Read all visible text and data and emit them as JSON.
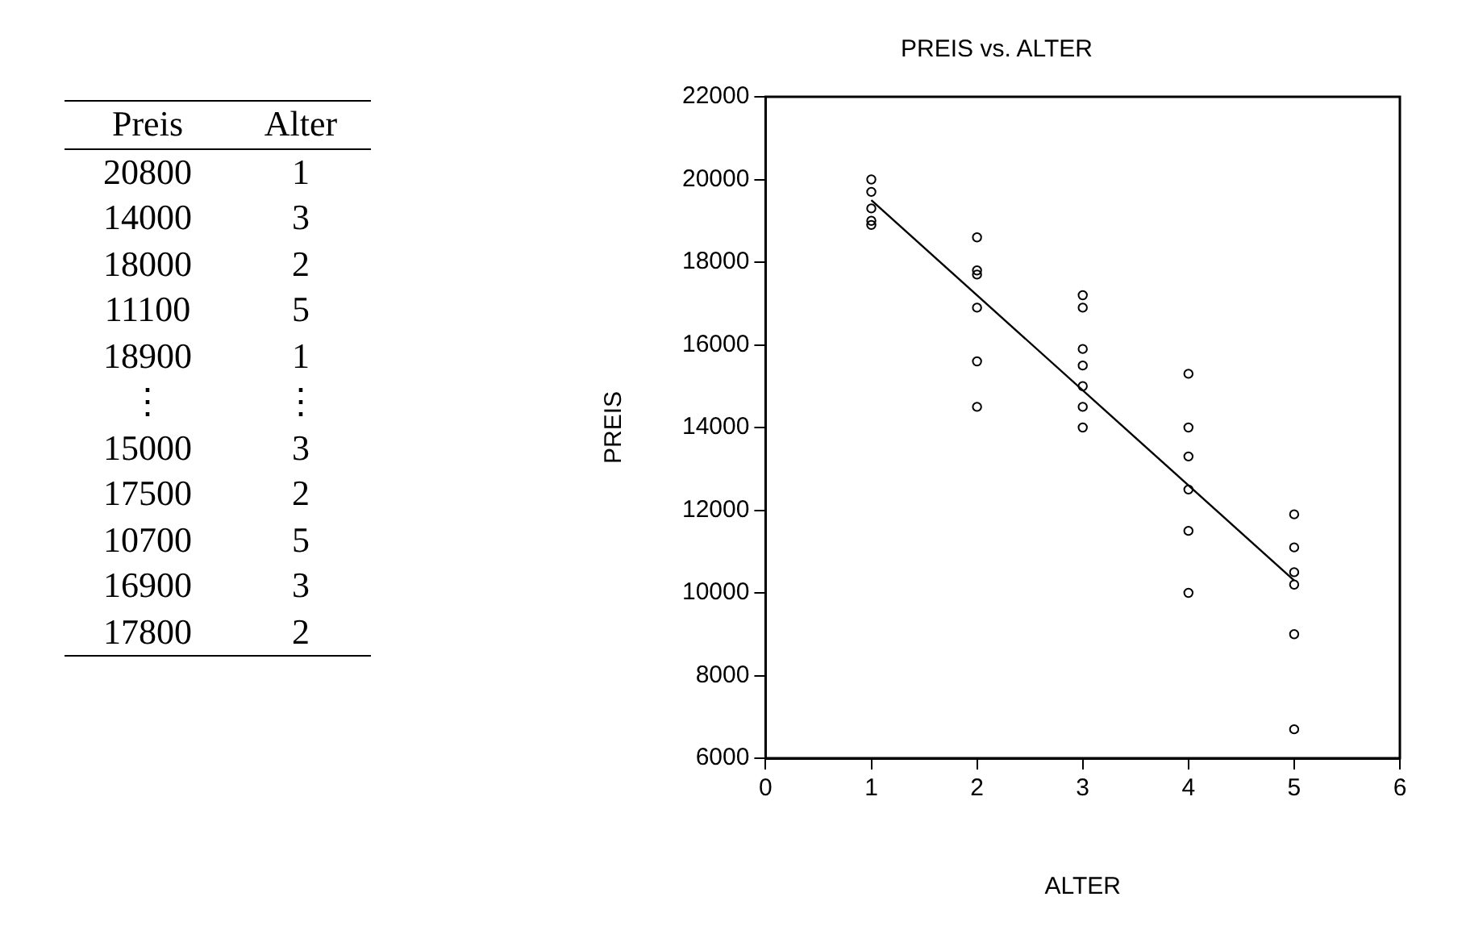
{
  "chart_data": [
    {
      "type": "other",
      "annotations": [
        "Preis",
        "Alter",
        "20800",
        "1",
        "14000",
        "3",
        "18000",
        "2",
        "11100",
        "5",
        "18900",
        "1",
        "⋮",
        "⋮",
        "15000",
        "3",
        "17500",
        "2",
        "10700",
        "5",
        "16900",
        "3",
        "17800",
        "2"
      ]
    },
    {
      "type": "scatter",
      "title": "PREIS vs. ALTER",
      "xlabel": "ALTER",
      "ylabel": "PREIS",
      "xlim": [
        0,
        6
      ],
      "xticks": [
        0,
        1,
        2,
        3,
        4,
        5,
        6
      ],
      "ylim": [
        6000,
        22000
      ],
      "yticks": [
        6000,
        8000,
        10000,
        12000,
        14000,
        16000,
        18000,
        20000,
        22000
      ],
      "grid": false,
      "legend": false,
      "series": [
        {
          "type": "scatter",
          "marker": "circle",
          "color": "#000000",
          "x": [
            1,
            1,
            1,
            1,
            1,
            2,
            2,
            2,
            2,
            2,
            2,
            3,
            3,
            3,
            3,
            3,
            3,
            3,
            4,
            4,
            4,
            4,
            4,
            4,
            5,
            5,
            5,
            5,
            5,
            5
          ],
          "values": [
            20000,
            19700,
            19300,
            19000,
            18900,
            18600,
            17800,
            17700,
            16900,
            15600,
            14500,
            17200,
            16900,
            15900,
            15500,
            15000,
            14500,
            14000,
            15300,
            14000,
            13300,
            12500,
            11500,
            10000,
            11900,
            11100,
            10500,
            10200,
            9000,
            6700
          ]
        },
        {
          "type": "line",
          "marker": "none",
          "color": "#000000",
          "x": [
            1,
            5
          ],
          "values": [
            19500,
            10300
          ]
        }
      ]
    }
  ]
}
